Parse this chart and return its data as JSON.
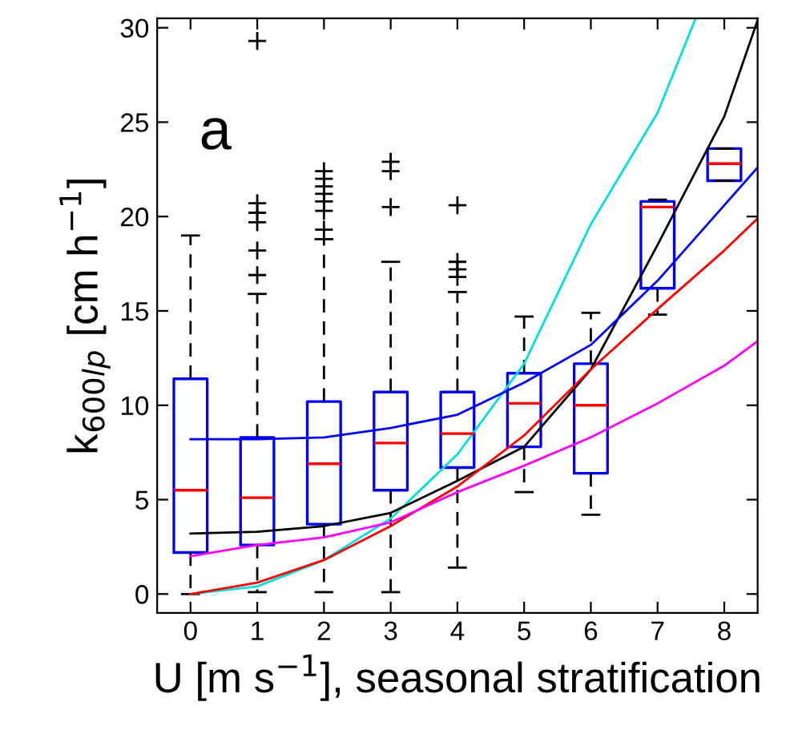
{
  "chart_data": {
    "type": "box",
    "xlabel": "U [m s$^{−1}$], seasonal stratification",
    "ylabel": "k$_{600lp}$ [cm h$^{−1}$]",
    "annotations": [
      "a"
    ],
    "x": [
      0,
      1,
      2,
      3,
      4,
      5,
      6,
      7,
      8
    ],
    "color": "#0000ff",
    "boxes": [
      {
        "low": 0,
        "q1": 2.2,
        "median": 5.5,
        "q3": 11.4,
        "high": 19.0
      },
      {
        "low": 0.1,
        "q1": 2.6,
        "median": 5.1,
        "q3": 8.3,
        "high": 15.9,
        "outliers": [
          16.9,
          18.2,
          19.7,
          20.2,
          20.7,
          29.3
        ]
      },
      {
        "low": 0.1,
        "q1": 3.7,
        "median": 6.9,
        "q3": 10.2,
        "high": 18.8,
        "outliers": [
          19.3,
          20.3,
          20.8,
          21.2,
          21.6,
          22.0,
          22.4
        ]
      },
      {
        "low": 0.1,
        "q1": 5.5,
        "median": 8.0,
        "q3": 10.7,
        "high": 17.6,
        "outliers": [
          20.5,
          22.4,
          22.9
        ]
      },
      {
        "low": 1.4,
        "q1": 6.7,
        "median": 8.5,
        "q3": 10.7,
        "high": 16.0,
        "outliers": [
          16.8,
          17.2,
          17.6,
          20.6
        ]
      },
      {
        "low": 5.4,
        "q1": 7.8,
        "median": 10.1,
        "q3": 11.7,
        "high": 14.7
      },
      {
        "low": 4.2,
        "q1": 6.4,
        "median": 10.0,
        "q3": 12.2,
        "high": 14.9
      },
      {
        "low": 14.8,
        "q1": 16.2,
        "median": 20.5,
        "q3": 20.8,
        "high": 20.9
      },
      {
        "low": 21.9,
        "q1": 21.9,
        "median": 22.8,
        "q3": 23.6,
        "high": 23.6
      }
    ],
    "series": [
      {
        "type": "line",
        "color": "#00e0e0",
        "x": [
          0,
          1,
          2,
          3,
          4,
          5,
          6,
          7,
          7.57
        ],
        "values": [
          0,
          0.4,
          1.8,
          4.0,
          7.4,
          12.2,
          19.6,
          25.5,
          30.5
        ]
      },
      {
        "type": "line",
        "color": "#000000",
        "x": [
          0,
          1,
          2,
          3,
          4,
          5,
          6,
          7,
          8,
          8.5
        ],
        "values": [
          3.2,
          3.3,
          3.6,
          4.3,
          6.0,
          7.8,
          11.9,
          18.5,
          25.3,
          30.4
        ]
      },
      {
        "type": "line",
        "color": "#0000ff",
        "x": [
          0,
          1,
          2,
          3,
          4,
          5,
          6,
          7,
          8,
          8.5
        ],
        "values": [
          8.2,
          8.2,
          8.3,
          8.8,
          9.5,
          11.2,
          13.2,
          16.6,
          20.6,
          22.6
        ]
      },
      {
        "type": "line",
        "color": "#ff0000",
        "x": [
          0,
          1,
          2,
          3,
          4,
          5,
          6,
          7,
          8,
          8.5
        ],
        "values": [
          0,
          0.6,
          1.8,
          3.6,
          5.7,
          8.4,
          11.9,
          15.1,
          18.2,
          19.9
        ]
      },
      {
        "type": "line",
        "color": "#ff00ff",
        "x": [
          0,
          1,
          2,
          3,
          4,
          5,
          6,
          7,
          8,
          8.5
        ],
        "values": [
          2.0,
          2.6,
          3.0,
          3.8,
          5.4,
          6.8,
          8.3,
          10.1,
          12.1,
          13.4
        ]
      }
    ],
    "xlim": [
      -0.5,
      8.5
    ],
    "ylim": [
      -1,
      30.5
    ],
    "xticks": [
      0,
      1,
      2,
      3,
      4,
      5,
      6,
      7,
      8
    ],
    "yticks": [
      0,
      5,
      10,
      15,
      20,
      25,
      30
    ],
    "grid": false,
    "legend": false
  }
}
